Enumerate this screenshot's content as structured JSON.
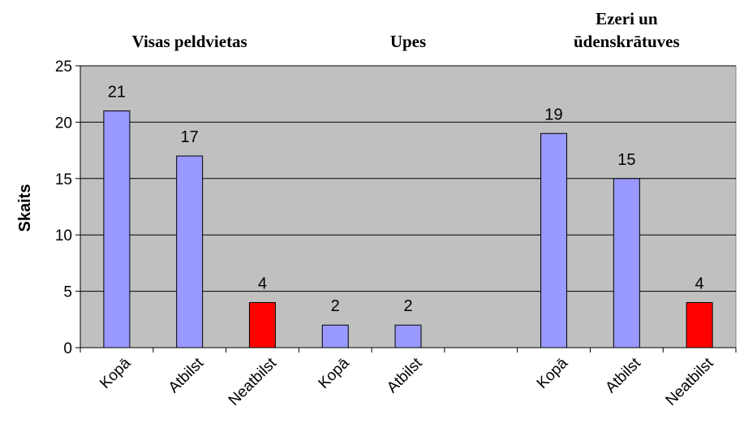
{
  "chart_data": {
    "type": "bar",
    "ylabel": "Skaits",
    "ylim": [
      0,
      25
    ],
    "yticks": [
      0,
      5,
      10,
      15,
      20,
      25
    ],
    "grid": true,
    "plot_background": "#c0c0c0",
    "groups": [
      {
        "title_lines": [
          "Visas peldvietas"
        ],
        "bars": [
          {
            "label": "Kopā",
            "value": 21,
            "color": "#9999ff"
          },
          {
            "label": "Atbilst",
            "value": 17,
            "color": "#9999ff"
          },
          {
            "label": "Neatbilst",
            "value": 4,
            "color": "#ff0000"
          }
        ]
      },
      {
        "title_lines": [
          "Upes"
        ],
        "bars": [
          {
            "label": "Kopā",
            "value": 2,
            "color": "#9999ff"
          },
          {
            "label": "Atbilst",
            "value": 2,
            "color": "#9999ff"
          }
        ]
      },
      {
        "title_lines": [
          "Ezeri un",
          "ūdenskrātuves"
        ],
        "bars": [
          {
            "label": "Kopā",
            "value": 19,
            "color": "#9999ff"
          },
          {
            "label": "Atbilst",
            "value": 15,
            "color": "#9999ff"
          },
          {
            "label": "Neatbilst",
            "value": 4,
            "color": "#ff0000"
          }
        ]
      }
    ]
  }
}
